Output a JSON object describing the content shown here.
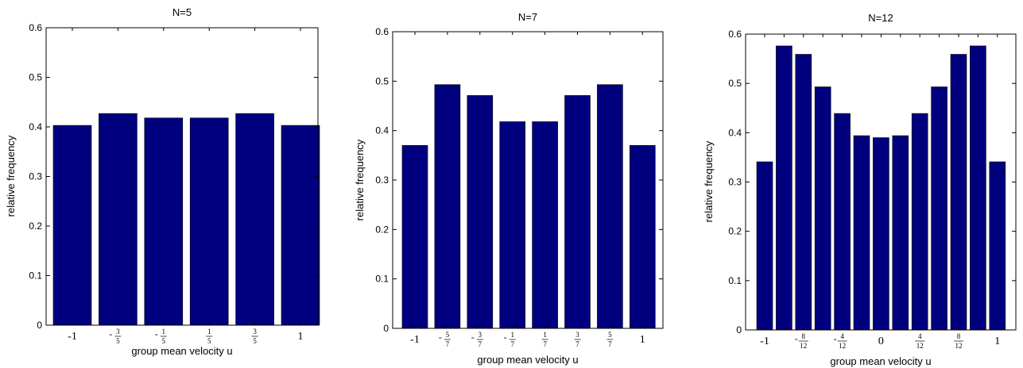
{
  "bar_color": "#00007f",
  "chart_data": [
    {
      "type": "bar",
      "title": "N=5",
      "xlabel": "group mean velocity u",
      "ylabel": "relative frequency",
      "ylim": [
        0,
        0.6
      ],
      "yticks": [
        "0",
        "0.1",
        "0.2",
        "0.3",
        "0.4",
        "0.5",
        "0.6"
      ],
      "categories": [
        "-1",
        "-3/5",
        "-1/5",
        "1/5",
        "3/5",
        "1"
      ],
      "values": [
        0.403,
        0.427,
        0.418,
        0.418,
        0.427,
        0.403
      ],
      "grid": false
    },
    {
      "type": "bar",
      "title": "N=7",
      "xlabel": "group mean velocity u",
      "ylabel": "relative frequency",
      "ylim": [
        0,
        0.6
      ],
      "yticks": [
        "0",
        "0.1",
        "0.2",
        "0.3",
        "0.4",
        "0.5",
        "0.6"
      ],
      "categories": [
        "-1",
        "-5/7",
        "-3/7",
        "-1/7",
        "1/7",
        "3/7",
        "5/7",
        "1"
      ],
      "values": [
        0.37,
        0.493,
        0.471,
        0.418,
        0.418,
        0.471,
        0.493,
        0.37
      ],
      "grid": false
    },
    {
      "type": "bar",
      "title": "N=12",
      "xlabel": "group mean velocity u",
      "ylabel": "relative frequency",
      "ylim": [
        0,
        0.6
      ],
      "yticks": [
        "0",
        "0.1",
        "0.2",
        "0.3",
        "0.4",
        "0.5",
        "0.6"
      ],
      "categories": [
        "-1",
        "",
        "-8/12",
        "",
        "-4/12",
        "",
        "0",
        "",
        "4/12",
        "",
        "8/12",
        "",
        "1"
      ],
      "values": [
        0.341,
        0.576,
        0.559,
        0.493,
        0.439,
        0.394,
        0.39,
        0.394,
        0.439,
        0.493,
        0.559,
        0.576,
        0.341
      ],
      "grid": false
    }
  ]
}
